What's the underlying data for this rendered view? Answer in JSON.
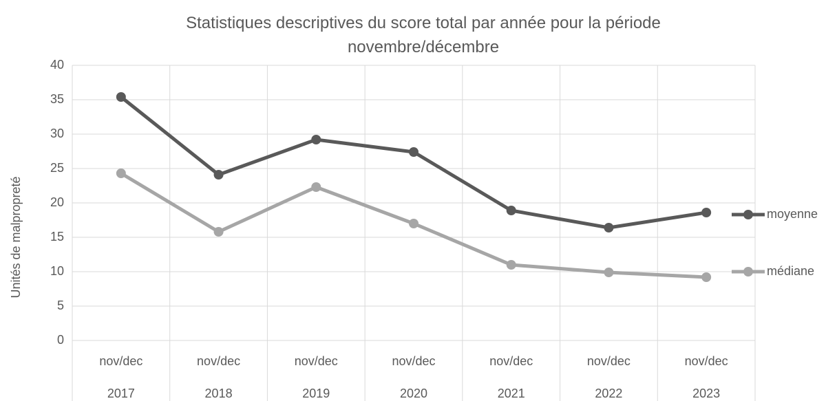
{
  "chart_data": {
    "type": "line",
    "title": "Statistiques descriptives du score total par année pour la période novembre/décembre",
    "y_label": "Unités de malpropreté",
    "categories": [
      [
        "nov/dec",
        "2017"
      ],
      [
        "nov/dec",
        "2018"
      ],
      [
        "nov/dec",
        "2019"
      ],
      [
        "nov/dec",
        "2020"
      ],
      [
        "nov/dec",
        "2021"
      ],
      [
        "nov/dec",
        "2022"
      ],
      [
        "nov/dec",
        "2023"
      ]
    ],
    "series": [
      {
        "name": "moyenne",
        "color": "#595959",
        "values": [
          35.4,
          24.1,
          29.2,
          27.4,
          18.9,
          16.4,
          18.6
        ]
      },
      {
        "name": "médiane",
        "color": "#a6a6a6",
        "values": [
          24.3,
          15.8,
          22.3,
          17.0,
          11.0,
          9.9,
          9.2
        ]
      }
    ],
    "ylim": [
      0,
      40
    ],
    "yticks": [
      0,
      5,
      10,
      15,
      20,
      25,
      30,
      35,
      40
    ],
    "grid": true,
    "legend": "right"
  }
}
